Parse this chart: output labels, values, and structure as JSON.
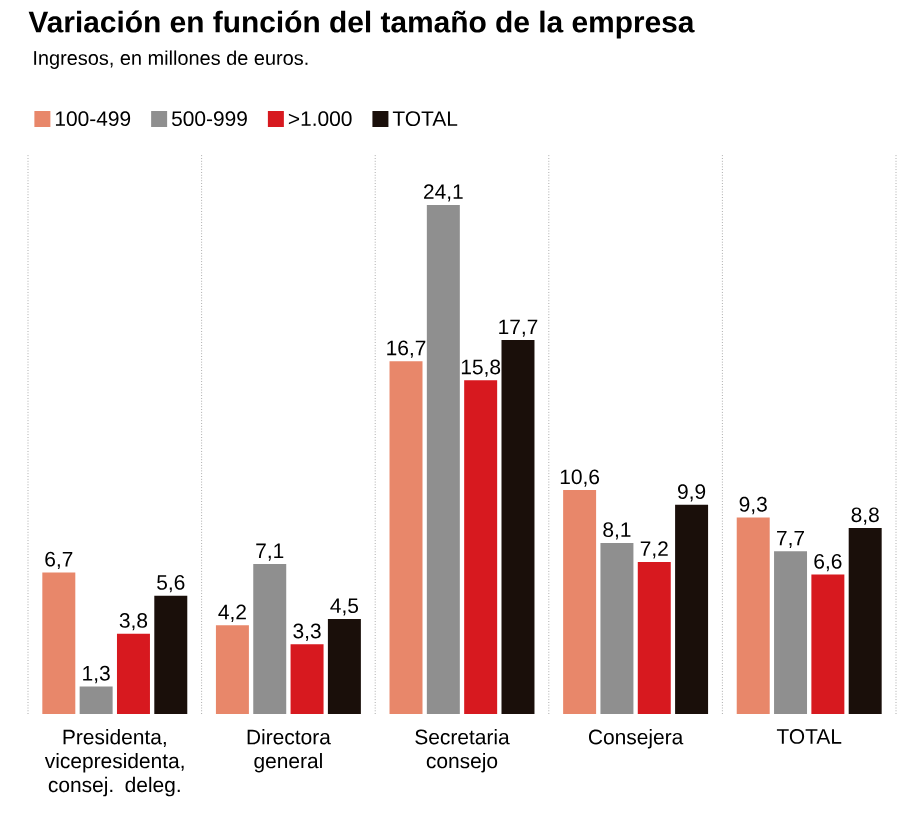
{
  "chart_data": {
    "type": "bar",
    "title": "Variación en función del tamaño de la empresa",
    "subtitle": "Ingresos, en millones de euros.",
    "categories": [
      "Presidenta, vicepresidenta, consej. deleg.",
      "Directora general",
      "Secretaria consejo",
      "Consejera",
      "TOTAL"
    ],
    "series": [
      {
        "name": "100-499",
        "color": "#e8876a",
        "values": [
          6.7,
          4.2,
          16.7,
          10.6,
          9.3
        ],
        "value_labels": [
          "6,7",
          "4,2",
          "16,7",
          "10,6",
          "9,3"
        ]
      },
      {
        "name": "500-999",
        "color": "#8f8f8f",
        "values": [
          1.3,
          7.1,
          24.1,
          8.1,
          7.7
        ],
        "value_labels": [
          "1,3",
          "7,1",
          "24,1",
          "8,1",
          "7,7"
        ]
      },
      {
        "name": ">1.000",
        "color": "#d7191f",
        "values": [
          3.8,
          3.3,
          15.8,
          7.2,
          6.6
        ],
        "value_labels": [
          "3,8",
          "3,3",
          "15,8",
          "7,2",
          "6,6"
        ]
      },
      {
        "name": "TOTAL",
        "color": "#1a0f0a",
        "values": [
          5.6,
          4.5,
          17.7,
          9.9,
          8.8
        ],
        "value_labels": [
          "5,6",
          "4,5",
          "17,7",
          "9,9",
          "8,8"
        ]
      }
    ],
    "legend": "top left"
  }
}
